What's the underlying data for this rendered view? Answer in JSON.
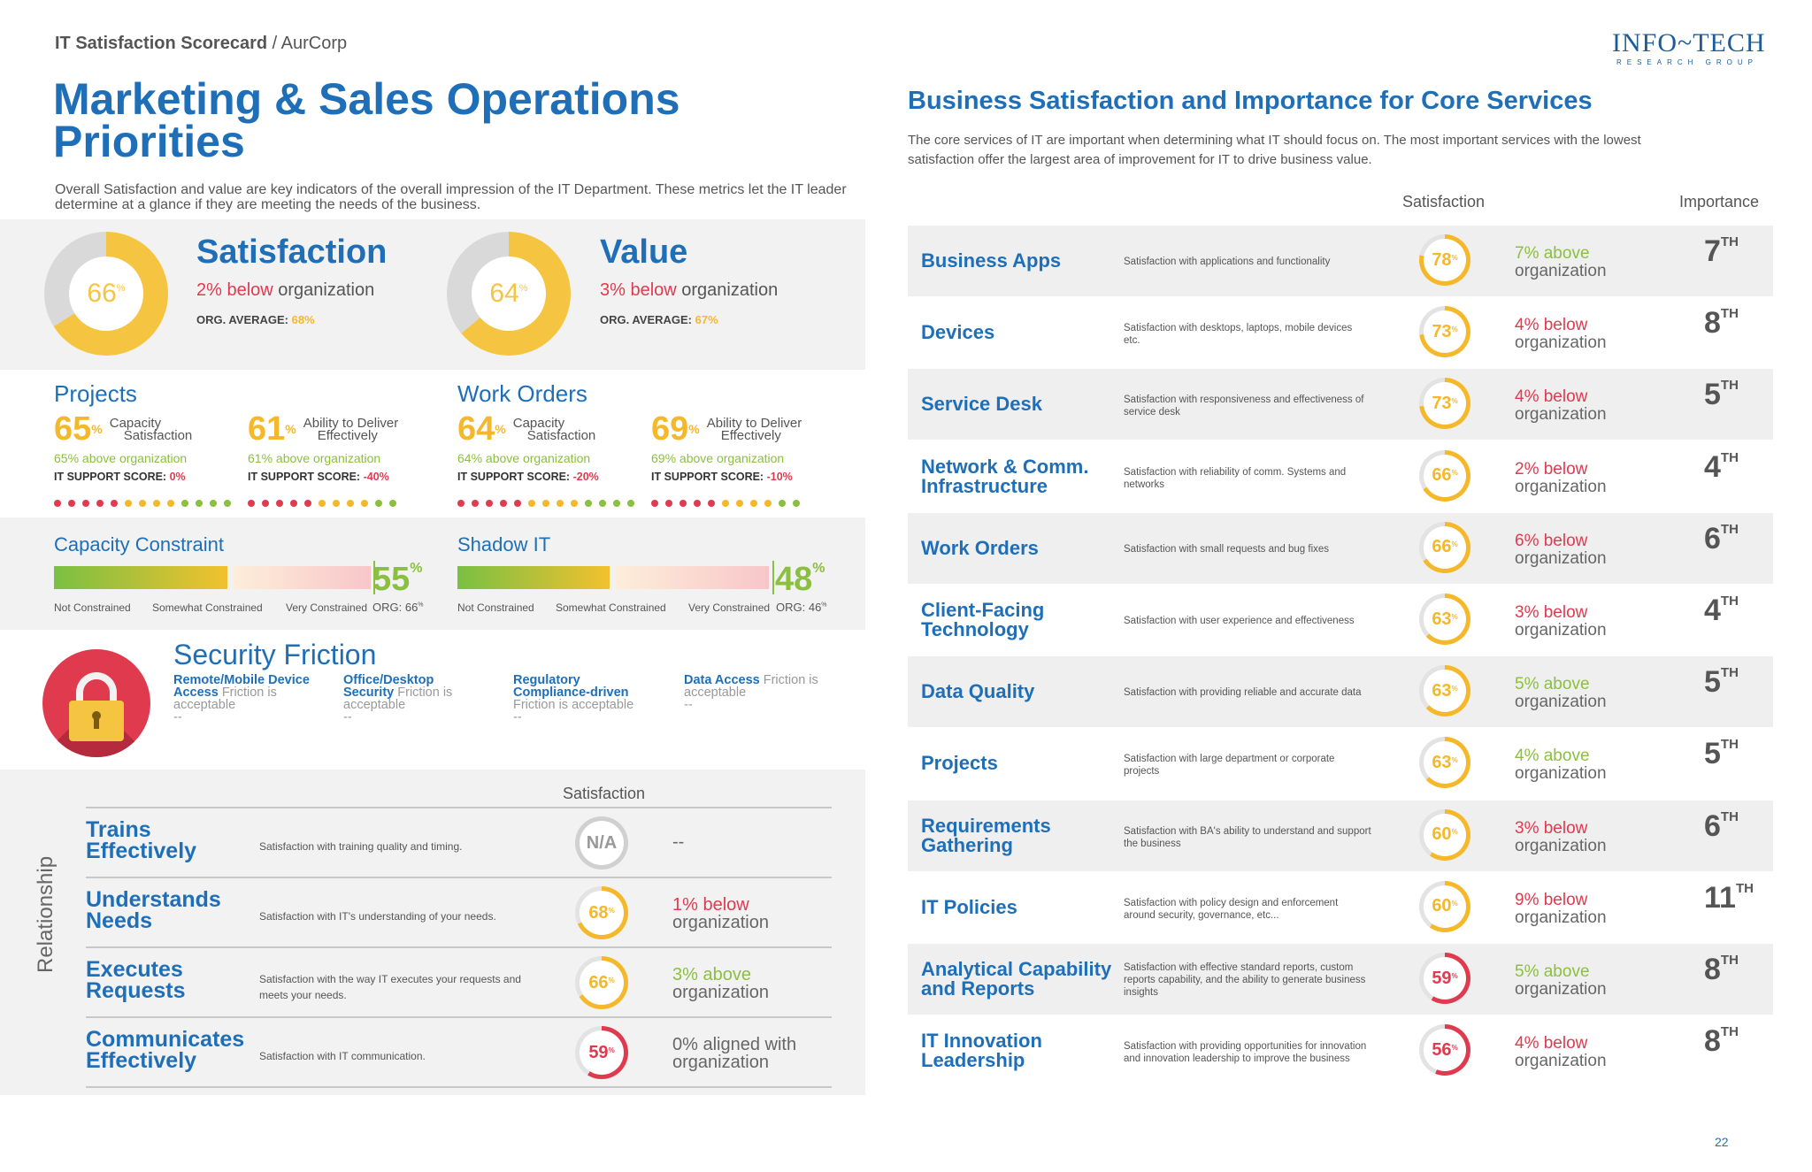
{
  "header": {
    "scorecard": "IT Satisfaction Scorecard",
    "separator": " / ",
    "company": "AurCorp",
    "logo_line1": "INFO~TECH",
    "logo_line2": "RESEARCH GROUP"
  },
  "left": {
    "title_line1": "Marketing & Sales Operations",
    "title_line2": "Priorities",
    "intro": "Overall Satisfaction and value are key indicators of the overall impression of the IT Department.  These metrics let the IT leader determine at a glance if they are meeting the needs of the business.",
    "satisfaction": {
      "value": "66",
      "fraction": 0.66,
      "title": "Satisfaction",
      "delta": "2% below",
      "delta_rest": " organization",
      "org_label": "ORG. AVERAGE: ",
      "org_value": "68%"
    },
    "value": {
      "value": "64",
      "fraction": 0.64,
      "title": "Value",
      "delta": "3% below",
      "delta_rest": " organization",
      "org_label": "ORG. AVERAGE: ",
      "org_value": "67%"
    },
    "projects": {
      "title": "Projects",
      "items": [
        {
          "pct": "65",
          "label1": "Capacity",
          "label2": "Satisfaction",
          "cmp": "65% above organization",
          "score_label": "IT SUPPORT SCORE: ",
          "score": "0%"
        },
        {
          "pct": "61",
          "label1": "Ability to Deliver",
          "label2": "Effectively",
          "cmp": "61% above organization",
          "score_label": "IT SUPPORT SCORE: ",
          "score": "-40%"
        }
      ]
    },
    "work_orders": {
      "title": "Work Orders",
      "items": [
        {
          "pct": "64",
          "label1": "Capacity",
          "label2": "Satisfaction",
          "cmp": "64% above organization",
          "score_label": "IT SUPPORT SCORE: ",
          "score": "-20%"
        },
        {
          "pct": "69",
          "label1": "Ability to Deliver",
          "label2": "Effectively",
          "cmp": "69% above organization",
          "score_label": "IT SUPPORT SCORE: ",
          "score": "-10%"
        }
      ]
    },
    "capacity": {
      "title": "Capacity Constraint",
      "pct": "55",
      "fraction": 0.55,
      "labels": [
        "Not Constrained",
        "Somewhat Constrained",
        "Very Constrained"
      ],
      "org": "ORG: 66"
    },
    "shadow": {
      "title": "Shadow IT",
      "pct": "48",
      "fraction": 0.48,
      "labels": [
        "Not Constrained",
        "Somewhat Constrained",
        "Very Constrained"
      ],
      "org": "ORG: 46"
    },
    "security": {
      "title": "Security Friction",
      "items": [
        {
          "b1": "Remote/Mobile Device",
          "b2": "Access",
          "rest1": "",
          "rest2": " Friction is",
          "rest3": "acceptable",
          "dash": "--"
        },
        {
          "b1": "Office/Desktop",
          "b2": "Security",
          "rest1": "",
          "rest2": " Friction is",
          "rest3": "acceptable",
          "dash": "--"
        },
        {
          "b1": "Regulatory",
          "b2": "Compliance-driven",
          "rest1": "",
          "rest2": "",
          "rest3": "Friction is acceptable",
          "dash": "--"
        },
        {
          "b1": "Data Access",
          "b2": "",
          "rest1": " Friction is",
          "rest2": "",
          "rest3": "acceptable",
          "dash": "--"
        }
      ]
    },
    "relationship": {
      "axis": "Relationship",
      "col": "Satisfaction",
      "rows": [
        {
          "l1": "Trains",
          "l2": "Effectively",
          "desc1": "Satisfaction with training quality and timing.",
          "desc2": "",
          "score": "N/A",
          "fraction": 0,
          "color": "#999999",
          "c1": "--",
          "c2": ""
        },
        {
          "l1": "Understands",
          "l2": "Needs",
          "desc1": "Satisfaction with IT's understanding of your needs.",
          "desc2": "",
          "score": "68",
          "fraction": 0.68,
          "color": "#f5b82a",
          "c1": "1% below",
          "c2": "organization",
          "c1color": "#e03a4f"
        },
        {
          "l1": "Executes",
          "l2": "Requests",
          "desc1": "Satisfaction with the way IT executes your requests and",
          "desc2": "meets your needs.",
          "score": "66",
          "fraction": 0.66,
          "color": "#f5b82a",
          "c1": "3% above",
          "c2": "organization",
          "c1color": "#8bbf3f"
        },
        {
          "l1": "Communicates",
          "l2": "Effectively",
          "desc1": "Satisfaction with IT communication.",
          "desc2": "",
          "score": "59",
          "fraction": 0.59,
          "color": "#e03a4f",
          "c1": "0% aligned with",
          "c2": "organization",
          "c1color": "#666666"
        }
      ]
    }
  },
  "right": {
    "title": "Business Satisfaction and Importance for Core Services",
    "intro": "The core services of IT are important when determining what IT should focus on. The most important services with the lowest satisfaction offer the largest area of improvement for IT to drive business value.",
    "col_satisfaction": "Satisfaction",
    "col_importance": "Importance",
    "rows": [
      {
        "l1": "Business Apps",
        "l2": "",
        "desc1": "Satisfaction with applications and functionality",
        "desc2": "",
        "desc3": "",
        "score": "78",
        "fraction": 0.78,
        "color": "#f5b82a",
        "c1": "7% above",
        "c1color": "#8bbf3f",
        "c2": "organization",
        "imp": "7",
        "imp_suffix": "TH"
      },
      {
        "l1": "Devices",
        "l2": "",
        "desc1": "Satisfaction with desktops, laptops, mobile devices",
        "desc2": "etc.",
        "desc3": "",
        "score": "73",
        "fraction": 0.73,
        "color": "#f5b82a",
        "c1": "4% below",
        "c1color": "#e03a4f",
        "c2": "organization",
        "imp": "8",
        "imp_suffix": "TH"
      },
      {
        "l1": "Service Desk",
        "l2": "",
        "desc1": "Satisfaction with responsiveness and effectiveness of",
        "desc2": "service desk",
        "desc3": "",
        "score": "73",
        "fraction": 0.73,
        "color": "#f5b82a",
        "c1": "4% below",
        "c1color": "#e03a4f",
        "c2": "organization",
        "imp": "5",
        "imp_suffix": "TH"
      },
      {
        "l1": "Network & Comm.",
        "l2": "Infrastructure",
        "desc1": "Satisfaction with reliability of comm. Systems and",
        "desc2": "networks",
        "desc3": "",
        "score": "66",
        "fraction": 0.66,
        "color": "#f5b82a",
        "c1": "2% below",
        "c1color": "#e03a4f",
        "c2": "organization",
        "imp": "4",
        "imp_suffix": "TH"
      },
      {
        "l1": "Work Orders",
        "l2": "",
        "desc1": "Satisfaction with small requests and bug fixes",
        "desc2": "",
        "desc3": "",
        "score": "66",
        "fraction": 0.66,
        "color": "#f5b82a",
        "c1": "6% below",
        "c1color": "#e03a4f",
        "c2": "organization",
        "imp": "6",
        "imp_suffix": "TH"
      },
      {
        "l1": "Client-Facing",
        "l2": "Technology",
        "desc1": "Satisfaction with user experience and effectiveness",
        "desc2": "",
        "desc3": "",
        "score": "63",
        "fraction": 0.63,
        "color": "#f5b82a",
        "c1": "3% below",
        "c1color": "#e03a4f",
        "c2": "organization",
        "imp": "4",
        "imp_suffix": "TH"
      },
      {
        "l1": "Data Quality",
        "l2": "",
        "desc1": "Satisfaction with providing reliable and accurate data",
        "desc2": "",
        "desc3": "",
        "score": "63",
        "fraction": 0.63,
        "color": "#f5b82a",
        "c1": "5% above",
        "c1color": "#8bbf3f",
        "c2": "organization",
        "imp": "5",
        "imp_suffix": "TH"
      },
      {
        "l1": "Projects",
        "l2": "",
        "desc1": "Satisfaction with large department or corporate",
        "desc2": "projects",
        "desc3": "",
        "score": "63",
        "fraction": 0.63,
        "color": "#f5b82a",
        "c1": "4% above",
        "c1color": "#8bbf3f",
        "c2": "organization",
        "imp": "5",
        "imp_suffix": "TH"
      },
      {
        "l1": "Requirements",
        "l2": "Gathering",
        "desc1": "Satisfaction with BA's ability to understand and support",
        "desc2": "the business",
        "desc3": "",
        "score": "60",
        "fraction": 0.6,
        "color": "#f5b82a",
        "c1": "3% below",
        "c1color": "#e03a4f",
        "c2": "organization",
        "imp": "6",
        "imp_suffix": "TH"
      },
      {
        "l1": "IT Policies",
        "l2": "",
        "desc1": "Satisfaction with policy design and enforcement",
        "desc2": "around security, governance, etc...",
        "desc3": "",
        "score": "60",
        "fraction": 0.6,
        "color": "#f5b82a",
        "c1": "9% below",
        "c1color": "#e03a4f",
        "c2": "organization",
        "imp": "11",
        "imp_suffix": "TH"
      },
      {
        "l1": "Analytical Capability",
        "l2": "and Reports",
        "desc1": "Satisfaction with effective standard reports, custom",
        "desc2": "reports capability, and the ability to generate business",
        "desc3": "insights",
        "score": "59",
        "fraction": 0.59,
        "color": "#e03a4f",
        "c1": "5% above",
        "c1color": "#8bbf3f",
        "c2": "organization",
        "imp": "8",
        "imp_suffix": "TH"
      },
      {
        "l1": "IT Innovation",
        "l2": "Leadership",
        "desc1": "Satisfaction with providing opportunities for innovation",
        "desc2": "and innovation leadership to improve the business",
        "desc3": "",
        "score": "56",
        "fraction": 0.56,
        "color": "#e03a4f",
        "c1": "4% below",
        "c1color": "#e03a4f",
        "c2": "organization",
        "imp": "8",
        "imp_suffix": "TH"
      }
    ]
  },
  "page_number": "22",
  "colors": {
    "blue": "#1f6fb8",
    "yellow": "#f5b82a",
    "red": "#e03a4f",
    "green": "#8bbf3f"
  }
}
